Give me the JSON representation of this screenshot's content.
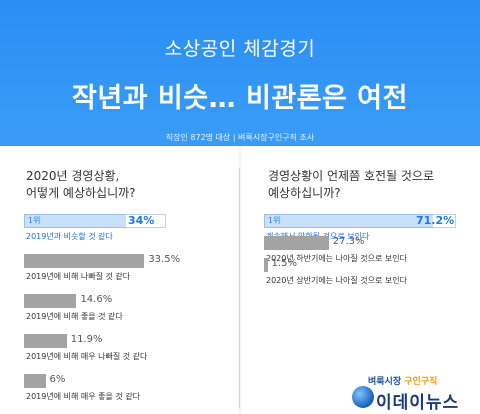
{
  "header": {
    "title1": "소상공인 체감경기",
    "title2": "작년과 비슷… 비관론은 여전",
    "meta": "직장인 872명 대상 | 벼룩시장구인구직 조사"
  },
  "chart_data": [
    {
      "type": "bar",
      "question": [
        "2020년 경영상황,",
        "어떻게 예상하십니까?"
      ],
      "rank_label": "1위",
      "categories": [
        "2019년과 비슷할 것 같다",
        "2019년에 비해 나빠질 것 같다",
        "2019년에 비해 좋을 것 같다",
        "2019년에 비해 매우 나빠질 것 같다",
        "2019년에 비해 매우 좋을 것 같다"
      ],
      "values": [
        34,
        33.5,
        14.6,
        11.9,
        6
      ],
      "value_labels": [
        "34%",
        "33.5%",
        "14.6%",
        "11.9%",
        "6%"
      ],
      "xlim": [
        0,
        34
      ]
    },
    {
      "type": "bar",
      "question": [
        "경영상황이 언제쯤 호전될 것으로",
        "예상하십니까?"
      ],
      "rank_label": "1위",
      "categories": [
        "계속해서 악화될 것으로 보인다",
        "2020년 하반기에는 나아질 것으로 보인다",
        "2020년 상반기에는 나아질 것으로 보인다"
      ],
      "values": [
        71.2,
        27.3,
        1.5
      ],
      "value_labels": [
        "71.2%",
        "27.3%",
        "1.5%"
      ],
      "xlim": [
        0,
        71.2
      ]
    }
  ],
  "colors": {
    "header": "#2a8ef3",
    "highlight": "#3a8fe6",
    "gray": "#a3a3a3"
  },
  "logo": {
    "line1_a": "벼룩시장",
    "line1_b": "구인구직",
    "line2": "이데이뉴스"
  }
}
